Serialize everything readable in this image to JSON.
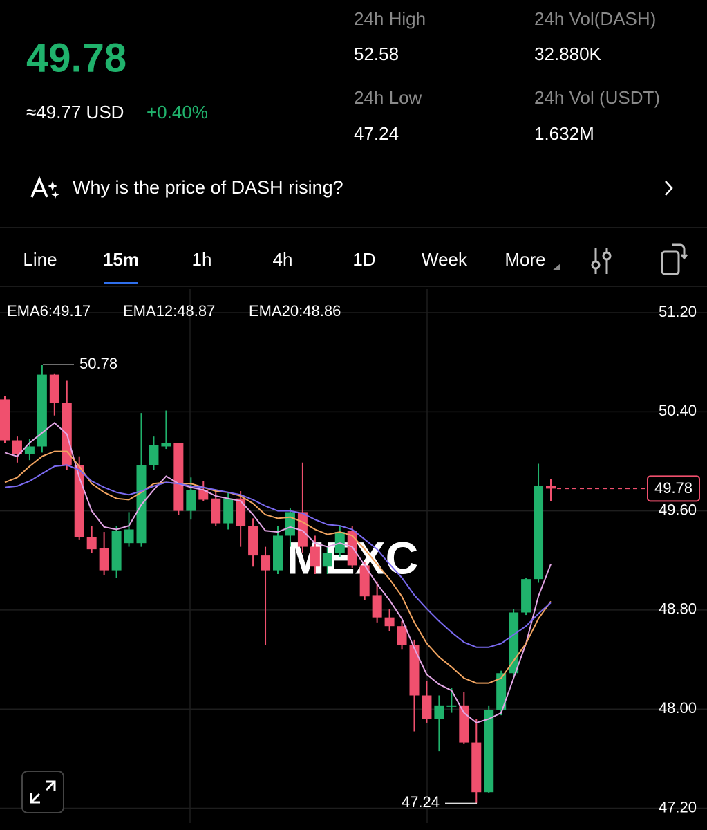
{
  "header": {
    "price": "49.78",
    "usd_approx": "≈49.77 USD",
    "change": "+0.40%",
    "stats": [
      {
        "label": "24h High",
        "value": "52.58"
      },
      {
        "label": "24h Vol(DASH)",
        "value": "32.880K"
      },
      {
        "label": "24h Low",
        "value": "47.24"
      },
      {
        "label": "24h Vol (USDT)",
        "value": "1.632M"
      }
    ]
  },
  "insight": {
    "text": "Why is the price of DASH rising?"
  },
  "tabs": [
    "Line",
    "15m",
    "1h",
    "4h",
    "1D",
    "Week",
    "More"
  ],
  "active_tab": 1,
  "chart_data": {
    "type": "candlestick",
    "open": [
      50.5,
      50.17,
      50.06,
      50.12,
      50.7,
      50.47,
      49.97,
      49.39,
      49.3,
      49.12,
      49.34,
      49.34,
      49.97,
      50.12,
      50.15,
      49.6,
      49.77,
      49.7,
      49.5,
      49.7,
      49.48,
      49.24,
      49.12,
      49.4,
      49.59,
      49.31,
      49.15,
      49.26,
      49.44,
      49.16,
      48.92,
      48.74,
      48.67,
      48.52,
      48.11,
      47.92,
      48.02,
      48.03,
      47.73,
      47.33,
      47.99,
      48.29,
      48.78,
      49.05,
      49.8
    ],
    "high": [
      50.53,
      50.2,
      50.18,
      50.78,
      50.71,
      50.65,
      50.04,
      49.48,
      49.43,
      49.48,
      49.59,
      50.39,
      50.2,
      50.41,
      50.15,
      49.87,
      49.84,
      49.76,
      49.75,
      49.76,
      49.54,
      49.31,
      49.48,
      49.62,
      49.99,
      49.4,
      49.31,
      49.48,
      49.48,
      49.19,
      49.03,
      48.81,
      48.71,
      48.56,
      48.23,
      48.11,
      48.17,
      48.14,
      47.92,
      48.03,
      48.31,
      48.81,
      49.06,
      49.98,
      49.86
    ],
    "low": [
      50.15,
      49.99,
      50.01,
      50.07,
      50.37,
      49.93,
      49.37,
      49.26,
      49.08,
      49.06,
      49.31,
      49.31,
      49.93,
      50.1,
      49.57,
      49.53,
      49.68,
      49.48,
      49.45,
      49.31,
      49.15,
      48.52,
      49.09,
      49.31,
      49.26,
      49.09,
      49.09,
      49.23,
      49.14,
      48.88,
      48.7,
      48.63,
      48.48,
      47.82,
      47.89,
      47.66,
      47.97,
      47.72,
      47.24,
      47.32,
      47.95,
      48.26,
      48.76,
      49.02,
      49.68
    ],
    "close": [
      50.17,
      50.06,
      50.12,
      50.7,
      50.47,
      49.97,
      49.39,
      49.29,
      49.12,
      49.44,
      49.45,
      49.97,
      50.13,
      50.15,
      49.6,
      49.77,
      49.69,
      49.5,
      49.7,
      49.48,
      49.24,
      49.12,
      49.4,
      49.59,
      49.31,
      49.15,
      49.26,
      49.43,
      49.16,
      48.91,
      48.74,
      48.67,
      48.52,
      48.11,
      47.92,
      48.03,
      48.03,
      47.73,
      47.33,
      47.99,
      48.29,
      48.78,
      49.05,
      49.8,
      49.78
    ],
    "up_color": "#20b26c",
    "down_color": "#f0506e",
    "series": [
      {
        "name": "EMA6:49.17",
        "color": "#e3a6e6",
        "values": [
          50.07,
          50.04,
          50.15,
          50.23,
          50.31,
          50.22,
          49.87,
          49.6,
          49.47,
          49.45,
          49.48,
          49.65,
          49.77,
          49.88,
          49.82,
          49.79,
          49.77,
          49.72,
          49.7,
          49.68,
          49.57,
          49.44,
          49.43,
          49.47,
          49.44,
          49.34,
          49.31,
          49.34,
          49.31,
          49.16,
          49.01,
          48.88,
          48.73,
          48.49,
          48.28,
          48.2,
          48.15,
          47.97,
          47.89,
          47.92,
          47.97,
          48.25,
          48.53,
          48.91,
          49.17
        ]
      },
      {
        "name": "EMA12:48.87",
        "color": "#f2a561",
        "values": [
          49.83,
          49.87,
          49.96,
          50.04,
          50.08,
          50.08,
          49.96,
          49.82,
          49.75,
          49.7,
          49.69,
          49.75,
          49.82,
          49.83,
          49.82,
          49.82,
          49.79,
          49.76,
          49.75,
          49.72,
          49.66,
          49.57,
          49.54,
          49.55,
          49.51,
          49.45,
          49.41,
          49.43,
          49.4,
          49.29,
          49.17,
          49.05,
          48.91,
          48.7,
          48.53,
          48.42,
          48.34,
          48.25,
          48.21,
          48.21,
          48.25,
          48.39,
          48.53,
          48.73,
          48.87
        ]
      },
      {
        "name": "EMA20:48.86",
        "color": "#7a6af0",
        "values": [
          49.79,
          49.8,
          49.84,
          49.9,
          49.96,
          49.97,
          49.93,
          49.84,
          49.79,
          49.75,
          49.73,
          49.76,
          49.8,
          49.83,
          49.82,
          49.8,
          49.79,
          49.77,
          49.75,
          49.73,
          49.69,
          49.64,
          49.6,
          49.6,
          49.58,
          49.53,
          49.49,
          49.48,
          49.45,
          49.37,
          49.29,
          49.17,
          49.06,
          48.92,
          48.81,
          48.71,
          48.62,
          48.54,
          48.5,
          48.5,
          48.53,
          48.6,
          48.67,
          48.77,
          48.86
        ]
      }
    ],
    "ylim": [
      47.08,
      51.39
    ],
    "yticks": [
      {
        "value": 47.2,
        "label": "47.20"
      },
      {
        "value": 48,
        "label": "48.00"
      },
      {
        "value": 48.8,
        "label": "48.80"
      },
      {
        "value": 49.6,
        "label": "49.60"
      },
      {
        "value": 50.4,
        "label": "50.40"
      },
      {
        "value": 51.2,
        "label": "51.20"
      }
    ],
    "grid": true,
    "max_label": 50.78,
    "min_label": 47.24,
    "last_price": 49.78,
    "watermark": "MEXC"
  }
}
